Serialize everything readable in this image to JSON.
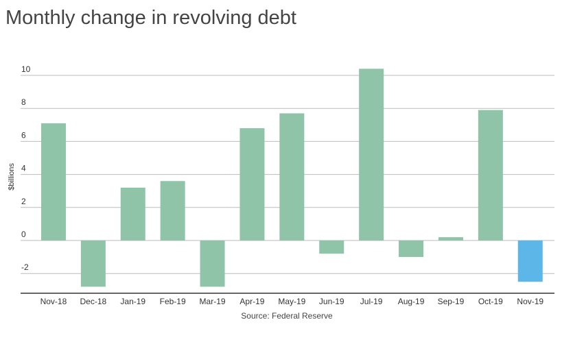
{
  "chart_data": {
    "type": "bar",
    "title": "Monthly change in revolving debt",
    "ylabel": "$billions",
    "xlabel": "",
    "source": "Source: Federal Reserve",
    "categories": [
      "Nov-18",
      "Dec-18",
      "Jan-19",
      "Feb-19",
      "Mar-19",
      "Apr-19",
      "May-19",
      "Jun-19",
      "Jul-19",
      "Aug-19",
      "Sep-19",
      "Oct-19",
      "Nov-19"
    ],
    "values": [
      7.1,
      -2.8,
      3.2,
      3.6,
      -2.8,
      6.8,
      7.7,
      -0.8,
      10.4,
      -1.0,
      0.2,
      7.9,
      -2.5
    ],
    "yticks": [
      -2,
      0,
      2,
      4,
      6,
      8,
      10
    ],
    "ytick_labels": [
      "-2",
      "0",
      "2",
      "4",
      "6",
      "8",
      "10"
    ],
    "ylim": [
      -3.3,
      11
    ],
    "grid": true,
    "colors": {
      "default": "#8fc4a8",
      "highlight": "#5db6e8",
      "grid": "#bbbbbb",
      "axis": "#333333"
    },
    "highlight_index": 12
  }
}
